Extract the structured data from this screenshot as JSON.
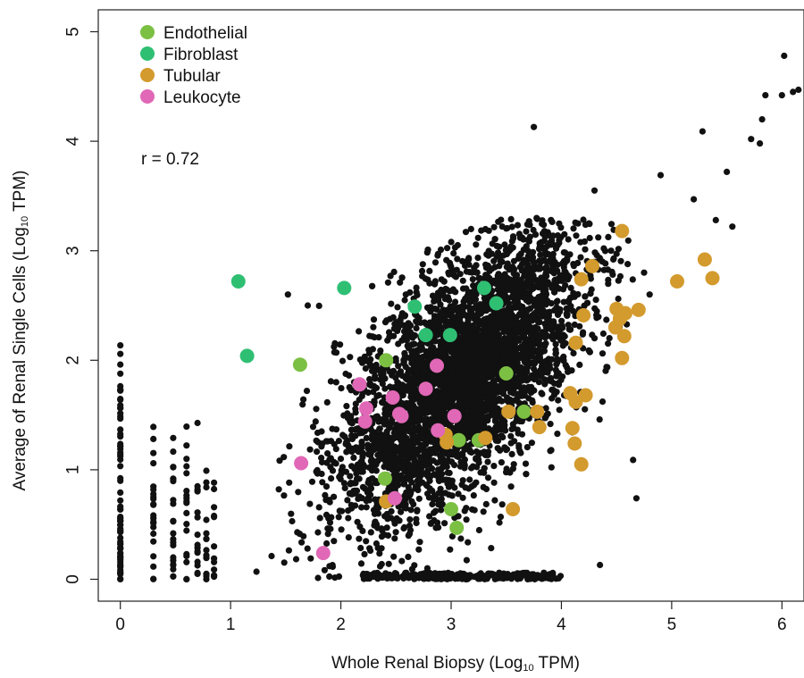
{
  "chart_data": {
    "type": "scatter",
    "xlabel": "Whole Renal Biopsy (Log10 TPM)",
    "xlabel_parts": {
      "pre": "Whole Renal Biopsy (Log",
      "sub": "10",
      "post": " TPM)"
    },
    "ylabel": "Average of Renal Single Cells (Log10 TPM)",
    "ylabel_parts": {
      "pre": "Average of Renal Single Cells (Log",
      "sub": "10",
      "post": " TPM)"
    },
    "xlim": [
      -0.2,
      6.2
    ],
    "ylim": [
      -0.2,
      5.2
    ],
    "x_ticks": [
      0,
      1,
      2,
      3,
      4,
      5,
      6
    ],
    "y_ticks": [
      0,
      1,
      2,
      3,
      4,
      5
    ],
    "grid": false,
    "legend_position": "top-left",
    "annotation": "r = 0.72",
    "background_points_color": "#111111",
    "series": [
      {
        "name": "Endothelial",
        "color": "#7cc043",
        "points": [
          [
            1.63,
            1.96
          ],
          [
            2.41,
            2.0
          ],
          [
            2.4,
            0.92
          ],
          [
            3.07,
            1.27
          ],
          [
            3.25,
            1.27
          ],
          [
            3.5,
            1.88
          ],
          [
            3.66,
            1.53
          ],
          [
            3.0,
            0.64
          ],
          [
            3.05,
            0.47
          ]
        ]
      },
      {
        "name": "Fibroblast",
        "color": "#2fbf73",
        "points": [
          [
            1.07,
            2.72
          ],
          [
            1.15,
            2.04
          ],
          [
            2.03,
            2.66
          ],
          [
            2.67,
            2.49
          ],
          [
            2.77,
            2.23
          ],
          [
            2.99,
            2.23
          ],
          [
            3.3,
            2.66
          ],
          [
            3.41,
            2.52
          ]
        ]
      },
      {
        "name": "Tubular",
        "color": "#d39a2d",
        "points": [
          [
            4.55,
            3.18
          ],
          [
            4.28,
            2.86
          ],
          [
            4.18,
            2.74
          ],
          [
            4.5,
            2.47
          ],
          [
            4.58,
            2.43
          ],
          [
            4.7,
            2.46
          ],
          [
            4.53,
            2.38
          ],
          [
            4.49,
            2.3
          ],
          [
            4.57,
            2.22
          ],
          [
            4.2,
            2.41
          ],
          [
            4.13,
            2.16
          ],
          [
            4.55,
            2.02
          ],
          [
            5.3,
            2.92
          ],
          [
            5.37,
            2.75
          ],
          [
            5.05,
            2.72
          ],
          [
            4.08,
            1.7
          ],
          [
            4.13,
            1.62
          ],
          [
            4.22,
            1.68
          ],
          [
            4.1,
            1.38
          ],
          [
            4.12,
            1.24
          ],
          [
            4.18,
            1.05
          ],
          [
            3.52,
            1.53
          ],
          [
            3.78,
            1.53
          ],
          [
            3.8,
            1.39
          ],
          [
            2.95,
            1.32
          ],
          [
            2.96,
            1.25
          ],
          [
            3.31,
            1.29
          ],
          [
            2.41,
            0.71
          ],
          [
            3.56,
            0.64
          ]
        ]
      },
      {
        "name": "Leukocyte",
        "color": "#e068b6",
        "points": [
          [
            2.17,
            1.78
          ],
          [
            2.23,
            1.56
          ],
          [
            2.22,
            1.44
          ],
          [
            2.47,
            1.66
          ],
          [
            2.53,
            1.51
          ],
          [
            2.55,
            1.49
          ],
          [
            2.77,
            1.74
          ],
          [
            2.87,
            1.95
          ],
          [
            3.03,
            1.49
          ],
          [
            2.88,
            1.36
          ],
          [
            1.64,
            1.06
          ],
          [
            2.49,
            0.74
          ],
          [
            1.84,
            0.24
          ]
        ]
      }
    ]
  }
}
